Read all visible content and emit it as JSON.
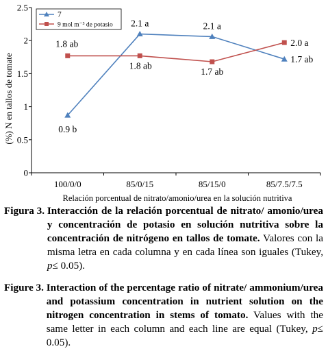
{
  "chart_data": {
    "type": "line",
    "categories": [
      "100/0/0",
      "85/0/15",
      "85/15/0",
      "85/7.5/7.5"
    ],
    "series": [
      {
        "name": "7",
        "color": "#4f81bd",
        "marker": "triangle",
        "values": [
          0.87,
          2.1,
          2.06,
          1.72
        ],
        "labels": [
          "0.9  b",
          "2.1 a",
          "2.1 a",
          "1.7 ab"
        ]
      },
      {
        "name": "9 mol m⁻³ de potasio",
        "color": "#c0504d",
        "marker": "square",
        "values": [
          1.77,
          1.77,
          1.68,
          1.97
        ],
        "labels": [
          "1.8 ab",
          "1.8 ab",
          "1.7 ab",
          "2.0 a"
        ]
      }
    ],
    "y_ticks": [
      "0",
      "0.5",
      "1",
      "1.5",
      "2",
      "2.5"
    ],
    "ylim": [
      0,
      2.5
    ],
    "xlabel": "Relación porcentual de nitrato/amonio/urea en la solución nutritiva",
    "ylabel": "(%) N en tallos de tomate",
    "legend_position": "top-left",
    "grid": false
  },
  "caption_es": {
    "label": "Figura 3. ",
    "bold": "Interacción de la relación porcentual de nitrato/ amonio/urea y concentración de potasio en solución nutritiva sobre la concentración de nitrógeno en tallos de tomate.",
    "text_before": " Valores con la misma letra en cada columna y en cada línea son iguales (Tukey, ",
    "italic": "p",
    "text_after": "≤ 0.05)."
  },
  "caption_en": {
    "label": "Figure 3. ",
    "bold": "Interaction of the percentage ratio of nitrate/ ammonium/urea and potassium concentration in nutrient solution on the nitrogen concentration in stems of tomato.",
    "text_before": " Values with the same letter in each column and each line are equal (Tukey, ",
    "italic": "p",
    "text_after": "≤ 0.05)."
  }
}
